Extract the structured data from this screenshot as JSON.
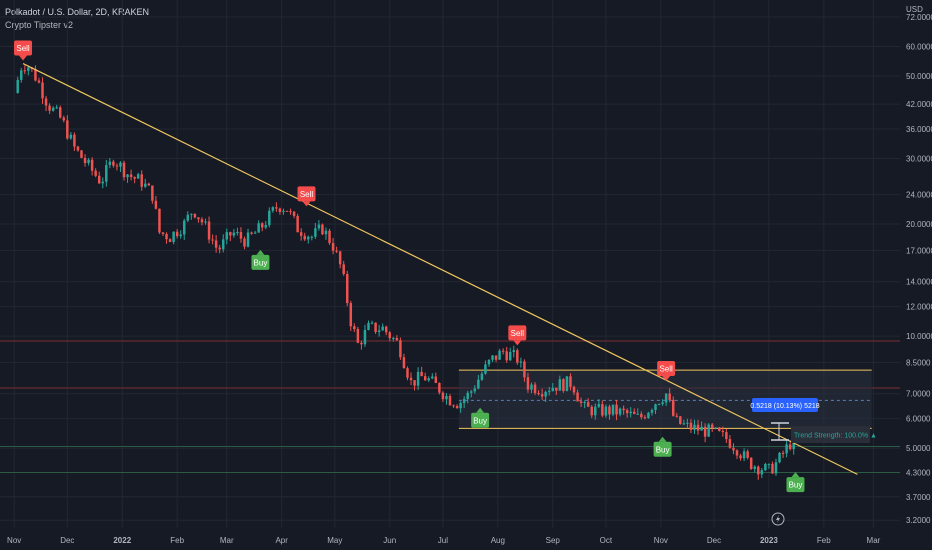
{
  "header": {
    "title": "Polkadot / U.S. Dollar, 2D, KRAKEN",
    "indicator": "Crypto Tipster v2"
  },
  "colors": {
    "background": "#161a25",
    "grid": "#232733",
    "up": "#26a69a",
    "down": "#ef5350",
    "buy": "#4caf50",
    "sell": "#f44b4b",
    "trendline": "#f0c75e",
    "range_fill": "#2a2f3d",
    "hline_red": "#7a2d33",
    "hline_green": "#2c5b43",
    "label_blue": "#2962ff"
  },
  "chart_data": {
    "type": "candlestick",
    "price_axis_label": "USD",
    "log_scale": true,
    "ylim": [
      3.05,
      80
    ],
    "price_ticks": [
      "72.0000",
      "60.0000",
      "50.0000",
      "42.0000",
      "36.0000",
      "30.0000",
      "24.0000",
      "20.0000",
      "17.0000",
      "14.0000",
      "12.0000",
      "10.0000",
      "8.5000",
      "7.0000",
      "6.0000",
      "5.0000",
      "4.3000",
      "3.7000",
      "3.2000"
    ],
    "time_labels": [
      "Nov",
      "Dec",
      "2022",
      "Feb",
      "Mar",
      "Apr",
      "May",
      "Jun",
      "Jul",
      "Aug",
      "Sep",
      "Oct",
      "Nov",
      "Dec",
      "2023",
      "Feb",
      "Mar"
    ],
    "price_path": [
      {
        "date": "2021-11-01",
        "close": 45
      },
      {
        "date": "2021-11-05",
        "close": 53
      },
      {
        "date": "2021-11-08",
        "close": 54
      },
      {
        "date": "2021-11-14",
        "close": 49
      },
      {
        "date": "2021-11-20",
        "close": 42
      },
      {
        "date": "2021-11-28",
        "close": 38
      },
      {
        "date": "2021-12-05",
        "close": 32
      },
      {
        "date": "2021-12-12",
        "close": 29
      },
      {
        "date": "2021-12-20",
        "close": 26
      },
      {
        "date": "2021-12-27",
        "close": 30
      },
      {
        "date": "2022-01-05",
        "close": 27
      },
      {
        "date": "2022-01-12",
        "close": 26
      },
      {
        "date": "2022-01-18",
        "close": 24
      },
      {
        "date": "2022-01-22",
        "close": 19
      },
      {
        "date": "2022-01-28",
        "close": 18.5
      },
      {
        "date": "2022-02-05",
        "close": 20
      },
      {
        "date": "2022-02-10",
        "close": 22
      },
      {
        "date": "2022-02-16",
        "close": 20
      },
      {
        "date": "2022-02-24",
        "close": 17
      },
      {
        "date": "2022-03-04",
        "close": 19
      },
      {
        "date": "2022-03-12",
        "close": 18
      },
      {
        "date": "2022-03-20",
        "close": 19.5
      },
      {
        "date": "2022-03-30",
        "close": 22.5
      },
      {
        "date": "2022-04-04",
        "close": 22
      },
      {
        "date": "2022-04-10",
        "close": 19.5
      },
      {
        "date": "2022-04-18",
        "close": 18.5
      },
      {
        "date": "2022-04-24",
        "close": 19.5
      },
      {
        "date": "2022-04-30",
        "close": 17.5
      },
      {
        "date": "2022-05-05",
        "close": 15
      },
      {
        "date": "2022-05-10",
        "close": 11
      },
      {
        "date": "2022-05-14",
        "close": 9.5
      },
      {
        "date": "2022-05-20",
        "close": 10.5
      },
      {
        "date": "2022-05-28",
        "close": 10.5
      },
      {
        "date": "2022-06-06",
        "close": 9.5
      },
      {
        "date": "2022-06-13",
        "close": 7.5
      },
      {
        "date": "2022-06-20",
        "close": 7.8
      },
      {
        "date": "2022-06-28",
        "close": 7.3
      },
      {
        "date": "2022-07-04",
        "close": 6.8
      },
      {
        "date": "2022-07-10",
        "close": 6.6
      },
      {
        "date": "2022-07-16",
        "close": 7.0
      },
      {
        "date": "2022-07-22",
        "close": 7.8
      },
      {
        "date": "2022-07-28",
        "close": 8.6
      },
      {
        "date": "2022-08-04",
        "close": 9.1
      },
      {
        "date": "2022-08-12",
        "close": 8.7
      },
      {
        "date": "2022-08-18",
        "close": 7.4
      },
      {
        "date": "2022-08-26",
        "close": 7.2
      },
      {
        "date": "2022-09-04",
        "close": 7.4
      },
      {
        "date": "2022-09-12",
        "close": 7.5
      },
      {
        "date": "2022-09-18",
        "close": 6.4
      },
      {
        "date": "2022-09-26",
        "close": 6.3
      },
      {
        "date": "2022-10-04",
        "close": 6.3
      },
      {
        "date": "2022-10-12",
        "close": 6.2
      },
      {
        "date": "2022-10-20",
        "close": 6.0
      },
      {
        "date": "2022-10-28",
        "close": 6.6
      },
      {
        "date": "2022-11-04",
        "close": 7.0
      },
      {
        "date": "2022-11-09",
        "close": 5.9
      },
      {
        "date": "2022-11-16",
        "close": 5.7
      },
      {
        "date": "2022-11-24",
        "close": 5.6
      },
      {
        "date": "2022-12-01",
        "close": 5.5
      },
      {
        "date": "2022-12-08",
        "close": 5.3
      },
      {
        "date": "2022-12-14",
        "close": 5.0
      },
      {
        "date": "2022-12-20",
        "close": 4.6
      },
      {
        "date": "2022-12-26",
        "close": 4.45
      },
      {
        "date": "2023-01-01",
        "close": 4.35
      },
      {
        "date": "2023-01-06",
        "close": 4.6
      },
      {
        "date": "2023-01-11",
        "close": 5.0
      },
      {
        "date": "2023-01-16",
        "close": 5.4
      },
      {
        "date": "2023-01-20",
        "close": 5.35
      }
    ],
    "signals": [
      {
        "type": "sell",
        "label": "Sell",
        "date": "2021-11-06",
        "price": 53
      },
      {
        "type": "buy",
        "label": "Buy",
        "date": "2022-03-20",
        "price": 17.8
      },
      {
        "type": "sell",
        "label": "Sell",
        "date": "2022-04-15",
        "price": 21.5
      },
      {
        "type": "buy",
        "label": "Buy",
        "date": "2022-07-22",
        "price": 6.7
      },
      {
        "type": "sell",
        "label": "Sell",
        "date": "2022-08-12",
        "price": 9.1
      },
      {
        "type": "buy",
        "label": "Buy",
        "date": "2022-11-02",
        "price": 5.6
      },
      {
        "type": "sell",
        "label": "Sell",
        "date": "2022-11-04",
        "price": 7.3
      },
      {
        "type": "buy",
        "label": "Buy",
        "date": "2023-01-16",
        "price": 4.5
      }
    ],
    "trendline": {
      "start": {
        "date": "2021-11-06",
        "price": 54
      },
      "end": {
        "date": "2023-02-20",
        "price": 4.25
      }
    },
    "range_box": {
      "start": "2022-07-10",
      "end": "2023-02-28",
      "top": 8.1,
      "bottom": 5.65,
      "mid": 6.72
    },
    "hlines": [
      {
        "price": 9.7,
        "color": "red"
      },
      {
        "price": 7.25,
        "color": "red"
      },
      {
        "price": 5.05,
        "color": "green"
      },
      {
        "price": 4.3,
        "color": "green"
      }
    ],
    "annotations": {
      "measure_label": "0.5218 (10.13%) 5218",
      "trend_strength_label": "Trend Strength: 100.0%",
      "trend_arrow": "▲"
    }
  }
}
